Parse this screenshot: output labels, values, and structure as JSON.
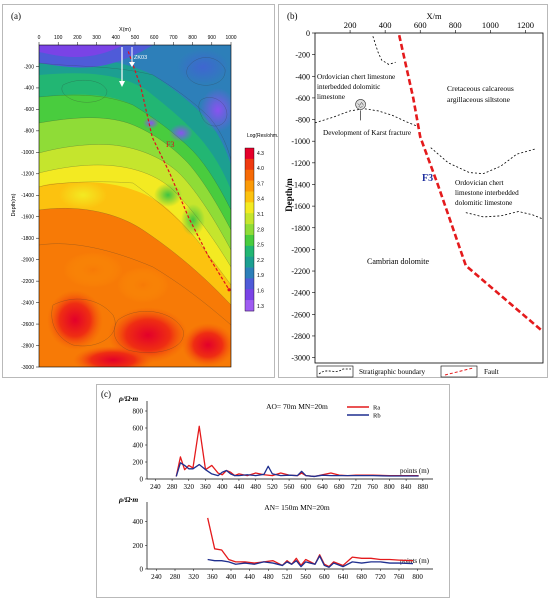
{
  "chart_data": [
    {
      "panel": "(a)",
      "type": "heatmap",
      "xlabel": "X(m)",
      "ylabel": "Depth(m)",
      "xticks": [
        "0",
        "100",
        "200",
        "300",
        "400",
        "500",
        "600",
        "700",
        "800",
        "900",
        "1000"
      ],
      "yticks": [
        "-200",
        "-400",
        "-600",
        "-800",
        "-1000",
        "-1200",
        "-1400",
        "-1600",
        "-1800",
        "-2000",
        "-2200",
        "-2400",
        "-2600",
        "-2800",
        "-3000"
      ],
      "xlim": [
        0,
        1000
      ],
      "ylim": [
        -3000,
        0
      ],
      "borehole_label": "ZK03",
      "fault_label": "F3",
      "colorbar": {
        "title": "Log(Res/ohm.m)",
        "ticks": [
          "4.3",
          "4.0",
          "3.7",
          "3.4",
          "3.1",
          "2.8",
          "2.5",
          "2.2",
          "1.9",
          "1.6",
          "1.3"
        ],
        "colors": [
          "#e5002a",
          "#ef3a10",
          "#f66a06",
          "#fb9a07",
          "#fcc20f",
          "#f3ea22",
          "#c5e52d",
          "#8fdc37",
          "#49cc3e",
          "#22b673",
          "#1c9f91",
          "#2d7fb9",
          "#4f5bd8",
          "#7a43e6",
          "#9f5cf2"
        ]
      },
      "fault_path": [
        [
          465,
          -60
        ],
        [
          530,
          -390
        ],
        [
          590,
          -860
        ],
        [
          680,
          -1190
        ],
        [
          780,
          -1610
        ],
        [
          880,
          -1960
        ],
        [
          990,
          -2280
        ]
      ]
    },
    {
      "panel": "(b)",
      "type": "line",
      "xlabel": "X/m",
      "ylabel": "Depth/m",
      "xticks": [
        "200",
        "400",
        "600",
        "800",
        "1000",
        "1200"
      ],
      "yticks": [
        "0",
        "-200",
        "-400",
        "-600",
        "-800",
        "-1000",
        "-1200",
        "-1400",
        "-1600",
        "-1800",
        "-2000",
        "-2200",
        "-2400",
        "-2600",
        "-2800",
        "-3000"
      ],
      "xlim": [
        0,
        1300
      ],
      "ylim": [
        -3050,
        0
      ],
      "fault_label": "F3",
      "fault_path": [
        [
          480,
          -20
        ],
        [
          560,
          -600
        ],
        [
          600,
          -960
        ],
        [
          700,
          -1400
        ],
        [
          860,
          -2150
        ],
        [
          1300,
          -2760
        ]
      ],
      "boundaries": [
        [
          [
            330,
            -30
          ],
          [
            360,
            -180
          ],
          [
            380,
            -250
          ],
          [
            420,
            -290
          ],
          [
            460,
            -270
          ]
        ],
        [
          [
            0,
            -830
          ],
          [
            100,
            -780
          ],
          [
            200,
            -720
          ],
          [
            280,
            -700
          ],
          [
            360,
            -720
          ],
          [
            440,
            -760
          ],
          [
            520,
            -820
          ],
          [
            580,
            -860
          ]
        ],
        [
          [
            660,
            -1060
          ],
          [
            760,
            -1200
          ],
          [
            880,
            -1290
          ],
          [
            960,
            -1300
          ],
          [
            1060,
            -1230
          ],
          [
            1150,
            -1120
          ],
          [
            1260,
            -1070
          ]
        ],
        [
          [
            860,
            -1660
          ],
          [
            960,
            -1700
          ],
          [
            1060,
            -1690
          ],
          [
            1160,
            -1650
          ],
          [
            1240,
            -1680
          ],
          [
            1300,
            -1720
          ]
        ]
      ],
      "karst_point": [
        260,
        -660
      ],
      "annotations": {
        "ordovician_upper": [
          "Ordovician chert limestone",
          "interbedded dolomitic",
          "limestone"
        ],
        "cretaceous": [
          "Cretaceous calcareous",
          "argillaceous siltstone"
        ],
        "karst": "Development of Karst fracture",
        "ordovician_lower": [
          "Ordovician chert",
          "limestone interbedded",
          "dolomitic limestone"
        ],
        "cambrian": "Cambrian dolomite"
      },
      "legend": {
        "boundary": "Stratigraphic boundary",
        "fault": "Fault"
      }
    },
    {
      "panel": "(c)",
      "type": "line",
      "subplots": [
        {
          "title": "AO= 70m MN=20m",
          "ylabel": "ρ/Ω·m",
          "xlabel": "points (m)",
          "yticks": [
            "0",
            "200",
            "400",
            "600",
            "800"
          ],
          "ylim": [
            0,
            800
          ],
          "xticks": [
            "240",
            "280",
            "320",
            "360",
            "400",
            "440",
            "480",
            "520",
            "560",
            "600",
            "640",
            "680",
            "720",
            "760",
            "800",
            "840",
            "880"
          ],
          "xlim": [
            220,
            890
          ],
          "series": [
            {
              "name": "Ra",
              "color": "#e41a1c",
              "x": [
                290,
                300,
                310,
                320,
                330,
                345,
                360,
                375,
                390,
                400,
                410,
                420,
                430,
                440,
                460,
                480,
                500,
                520,
                540,
                560,
                580,
                590,
                600,
                620,
                640,
                660,
                680,
                700,
                720,
                760,
                800,
                840,
                870
              ],
              "y": [
                30,
                260,
                110,
                160,
                130,
                620,
                110,
                160,
                70,
                50,
                100,
                80,
                40,
                60,
                40,
                70,
                50,
                40,
                70,
                45,
                40,
                70,
                40,
                30,
                50,
                70,
                45,
                40,
                45,
                45,
                40,
                40,
                40
              ]
            },
            {
              "name": "Rb",
              "color": "#1f2f8f",
              "x": [
                290,
                300,
                310,
                320,
                330,
                345,
                360,
                375,
                390,
                400,
                410,
                420,
                430,
                440,
                460,
                480,
                500,
                510,
                520,
                540,
                560,
                580,
                590,
                600,
                620,
                640,
                660,
                680,
                700,
                720,
                760,
                800,
                840,
                870
              ],
              "y": [
                30,
                190,
                160,
                120,
                120,
                170,
                110,
                60,
                40,
                80,
                100,
                60,
                40,
                40,
                50,
                40,
                55,
                150,
                60,
                40,
                45,
                40,
                90,
                40,
                30,
                45,
                40,
                40,
                40,
                40,
                40,
                35,
                35,
                35
              ]
            }
          ]
        },
        {
          "title": "AN= 150m MN=20m",
          "ylabel": "ρ/Ω·m",
          "xlabel": "points (m)",
          "yticks": [
            "0",
            "200",
            "400"
          ],
          "ylim": [
            0,
            480
          ],
          "xticks": [
            "240",
            "280",
            "320",
            "360",
            "400",
            "440",
            "480",
            "520",
            "560",
            "600",
            "640",
            "680",
            "720",
            "760",
            "800"
          ],
          "xlim": [
            220,
            820
          ],
          "series": [
            {
              "name": "Ra",
              "color": "#e41a1c",
              "x": [
                350,
                365,
                380,
                395,
                410,
                430,
                450,
                470,
                490,
                510,
                520,
                530,
                540,
                550,
                560,
                570,
                580,
                590,
                600,
                610,
                620,
                640,
                660,
                680,
                700,
                720,
                740,
                760,
                790
              ],
              "y": [
                430,
                170,
                160,
                80,
                60,
                60,
                50,
                60,
                70,
                30,
                70,
                40,
                90,
                30,
                80,
                60,
                40,
                120,
                40,
                20,
                60,
                30,
                100,
                90,
                90,
                80,
                80,
                75,
                70
              ]
            },
            {
              "name": "Rb",
              "color": "#1f2f8f",
              "x": [
                350,
                365,
                380,
                395,
                410,
                430,
                450,
                470,
                490,
                510,
                520,
                530,
                540,
                550,
                560,
                570,
                580,
                590,
                600,
                610,
                620,
                640,
                660,
                680,
                700,
                720,
                740,
                760,
                790
              ],
              "y": [
                80,
                70,
                70,
                60,
                40,
                50,
                40,
                60,
                50,
                30,
                60,
                40,
                70,
                20,
                60,
                50,
                40,
                110,
                30,
                15,
                50,
                20,
                60,
                50,
                60,
                60,
                50,
                50,
                45
              ]
            }
          ]
        }
      ]
    }
  ]
}
